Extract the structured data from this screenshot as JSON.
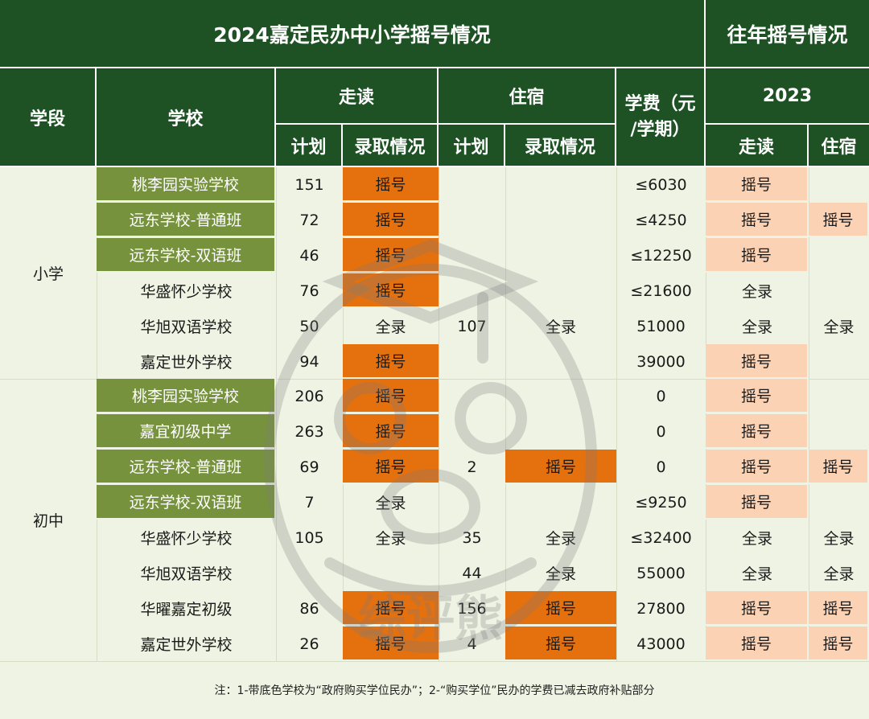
{
  "title": "2024嘉定民办中小学摇号情况",
  "title_prev": "往年摇号情况",
  "headers": {
    "segment": "学段",
    "school": "学校",
    "walk": "走读",
    "board": "住宿",
    "tuition_line1": "学费（元",
    "tuition_line2": "/学期）",
    "year": "2023",
    "plan": "计划",
    "admission": "录取情况",
    "prev_walk": "走读",
    "prev_board": "住宿"
  },
  "segments": [
    {
      "label": "小学"
    },
    {
      "label": "初中"
    }
  ],
  "rows": [
    {
      "school": "桃李园实验学校",
      "gov": true,
      "walk_plan": "151",
      "walk_adm": "摇号",
      "board_plan": "",
      "board_adm": "",
      "fee": "≤6030",
      "prev_walk": "摇号",
      "prev_board": ""
    },
    {
      "school": "远东学校-普通班",
      "gov": true,
      "walk_plan": "72",
      "walk_adm": "摇号",
      "board_plan": "",
      "board_adm": "",
      "fee": "≤4250",
      "prev_walk": "摇号",
      "prev_board": "摇号"
    },
    {
      "school": "远东学校-双语班",
      "gov": true,
      "walk_plan": "46",
      "walk_adm": "摇号",
      "board_plan": "",
      "board_adm": "",
      "fee": "≤12250",
      "prev_walk": "摇号",
      "prev_board": ""
    },
    {
      "school": "华盛怀少学校",
      "gov": false,
      "walk_plan": "76",
      "walk_adm": "摇号",
      "board_plan": "",
      "board_adm": "",
      "fee": "≤21600",
      "prev_walk": "全录",
      "prev_board": ""
    },
    {
      "school": "华旭双语学校",
      "gov": false,
      "walk_plan": "50",
      "walk_adm": "全录",
      "board_plan": "107",
      "board_adm": "全录",
      "fee": "51000",
      "prev_walk": "全录",
      "prev_board": "全录"
    },
    {
      "school": "嘉定世外学校",
      "gov": false,
      "walk_plan": "94",
      "walk_adm": "摇号",
      "board_plan": "",
      "board_adm": "",
      "fee": "39000",
      "prev_walk": "摇号",
      "prev_board": ""
    },
    {
      "school": "桃李园实验学校",
      "gov": true,
      "walk_plan": "206",
      "walk_adm": "摇号",
      "board_plan": "",
      "board_adm": "",
      "fee": "0",
      "prev_walk": "摇号",
      "prev_board": ""
    },
    {
      "school": "嘉宜初级中学",
      "gov": true,
      "walk_plan": "263",
      "walk_adm": "摇号",
      "board_plan": "",
      "board_adm": "",
      "fee": "0",
      "prev_walk": "摇号",
      "prev_board": ""
    },
    {
      "school": "远东学校-普通班",
      "gov": true,
      "walk_plan": "69",
      "walk_adm": "摇号",
      "board_plan": "2",
      "board_adm": "摇号",
      "fee": "0",
      "prev_walk": "摇号",
      "prev_board": "摇号"
    },
    {
      "school": "远东学校-双语班",
      "gov": true,
      "walk_plan": "7",
      "walk_adm": "全录",
      "board_plan": "",
      "board_adm": "",
      "fee": "≤9250",
      "prev_walk": "摇号",
      "prev_board": ""
    },
    {
      "school": "华盛怀少学校",
      "gov": false,
      "walk_plan": "105",
      "walk_adm": "全录",
      "board_plan": "35",
      "board_adm": "全录",
      "fee": "≤32400",
      "prev_walk": "全录",
      "prev_board": "全录"
    },
    {
      "school": "华旭双语学校",
      "gov": false,
      "walk_plan": "",
      "walk_adm": "",
      "board_plan": "44",
      "board_adm": "全录",
      "fee": "55000",
      "prev_walk": "全录",
      "prev_board": "全录"
    },
    {
      "school": "华曜嘉定初级",
      "gov": false,
      "walk_plan": "86",
      "walk_adm": "摇号",
      "board_plan": "156",
      "board_adm": "摇号",
      "fee": "27800",
      "prev_walk": "摇号",
      "prev_board": "摇号"
    },
    {
      "school": "嘉定世外学校",
      "gov": false,
      "walk_plan": "26",
      "walk_adm": "摇号",
      "board_plan": "4",
      "board_adm": "摇号",
      "fee": "43000",
      "prev_walk": "摇号",
      "prev_board": "摇号"
    }
  ],
  "footnote": "注：1-带底色学校为“政府购买学位民办”；2-“购买学位”民办的学费已减去政府补贴部分",
  "watermark_text": "综评熊",
  "colors": {
    "header_green": "#1e5224",
    "gov_school_green": "#76923c",
    "lottery_orange": "#e4700e",
    "prev_lottery_peach": "#fbd2b4",
    "background": "#eef3e3"
  }
}
